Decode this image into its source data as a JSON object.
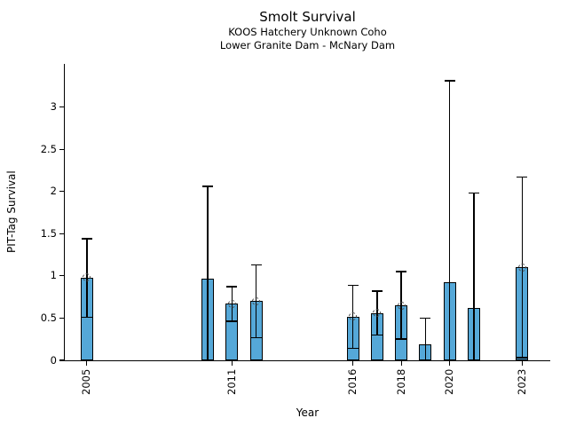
{
  "header": {
    "title": "Smolt Survival",
    "subtitle1": "KOOS Hatchery Unknown Coho",
    "subtitle2": "Lower Granite Dam - McNary Dam"
  },
  "axes": {
    "xlabel": "Year",
    "ylabel": "PIT-Tag Survival"
  },
  "chart_data": {
    "type": "bar",
    "title": "Smolt Survival",
    "subtitles": [
      "KOOS Hatchery Unknown Coho",
      "Lower Granite Dam - McNary Dam"
    ],
    "xlabel": "Year",
    "ylabel": "PIT-Tag Survival",
    "xlim": [
      2004.09,
      2024.16
    ],
    "ylim": [
      0,
      3.51
    ],
    "grid": false,
    "legend": "none",
    "bar_color": "#55A8D8",
    "bar_edge_color": "#000000",
    "error_color": "#000000",
    "marker_style": "dotted-open-circle",
    "bar_width_years": 0.5,
    "yticks": [
      0,
      0.5,
      1,
      1.5,
      2,
      2.5,
      3
    ],
    "ytick_labels": [
      "0",
      "0.5",
      "1",
      "1.5",
      "2",
      "2.5",
      "3"
    ],
    "xticks": [
      2005,
      2011,
      2016,
      2018,
      2020,
      2023
    ],
    "xtick_labels": [
      "2005",
      "2011",
      "2016",
      "2018",
      "2020",
      "2023"
    ],
    "points": [
      {
        "year": 2005,
        "value": 0.98,
        "err_lo": 0.51,
        "err_hi": 1.44,
        "marker": true
      },
      {
        "year": 2010,
        "value": 0.97,
        "err_lo": 0.0,
        "err_hi": 2.06,
        "marker": false
      },
      {
        "year": 2011,
        "value": 0.67,
        "err_lo": 0.46,
        "err_hi": 0.87,
        "marker": true
      },
      {
        "year": 2012,
        "value": 0.7,
        "err_lo": 0.27,
        "err_hi": 1.13,
        "marker": true
      },
      {
        "year": 2016,
        "value": 0.52,
        "err_lo": 0.14,
        "err_hi": 0.89,
        "marker": true
      },
      {
        "year": 2017,
        "value": 0.56,
        "err_lo": 0.3,
        "err_hi": 0.82,
        "marker": true
      },
      {
        "year": 2018,
        "value": 0.65,
        "err_lo": 0.25,
        "err_hi": 1.05,
        "marker": true
      },
      {
        "year": 2019,
        "value": 0.19,
        "err_lo": 0.0,
        "err_hi": 0.5,
        "marker": false
      },
      {
        "year": 2020,
        "value": 0.92,
        "err_lo": 0.0,
        "err_hi": 3.31,
        "marker": false
      },
      {
        "year": 2021,
        "value": 0.62,
        "err_lo": 0.0,
        "err_hi": 1.98,
        "marker": false
      },
      {
        "year": 2023,
        "value": 1.1,
        "err_lo": 0.03,
        "err_hi": 2.17,
        "marker": true
      }
    ]
  }
}
